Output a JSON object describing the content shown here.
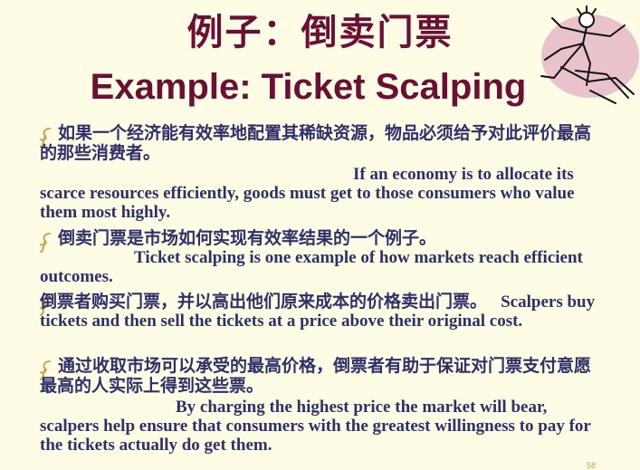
{
  "slide": {
    "title_cn": "例子：倒卖门票",
    "title_en": "Example: Ticket Scalping",
    "bullets": [
      {
        "cn": "如果一个经济能有效率地配置其稀缺资源，物品必须给予对此评价最高的那些消费者。",
        "en": "If an economy is to allocate its scarce resources efficiently, goods must get to those consumers who value them most highly."
      },
      {
        "cn": "倒卖门票是市场如何实现有效率结果的一个例子。",
        "en": "Ticket scalping is one example of how markets reach efficient outcomes."
      },
      {
        "cn": "倒票者购买门票，并以高出他们原来成本的价格卖出门票。",
        "en": "Scalpers buy tickets and then sell the tickets at a price above their original cost."
      },
      {
        "cn": "通过收取市场可以承受的最高价格，倒票者有助于保证对门票支付意愿最高的人实际上得到这些票。",
        "en": "By charging  the highest price the market will bear, scalpers help ensure that consumers with the greatest willingness to pay for the tickets actually do get them."
      }
    ],
    "page_number": "58",
    "bullet_icon": "scroll-bullet-icon",
    "clipart_icon": "dancing-figure-clipart",
    "colors": {
      "background": "#fefce4",
      "title": "#6b1034",
      "body_text": "#2f2f6b",
      "bullet": "#c9a35a",
      "clipart_blob": "#e9c3cc"
    }
  }
}
